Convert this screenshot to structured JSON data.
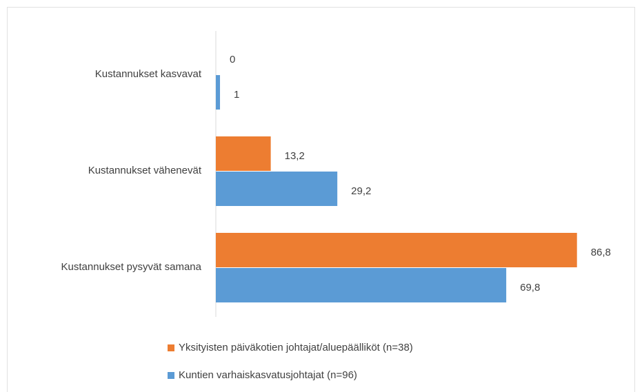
{
  "chart_data": {
    "type": "bar",
    "orientation": "horizontal",
    "categories": [
      "Kustannukset kasvavat",
      "Kustannukset vähenevät",
      "Kustannukset pysyvät samana"
    ],
    "series": [
      {
        "name": "Yksityisten päiväkotien johtajat/aluepäälliköt (n=38)",
        "color": "#ed7d31",
        "values": [
          0,
          13.2,
          86.8
        ],
        "value_labels": [
          "0",
          "13,2",
          "86,8"
        ]
      },
      {
        "name": "Kuntien varhaiskasvatusjohtajat (n=96)",
        "color": "#5b9bd5",
        "values": [
          1,
          29.2,
          69.8
        ],
        "value_labels": [
          "1",
          "29,2",
          "69,8"
        ]
      }
    ],
    "xlim": [
      0,
      90
    ],
    "legend": "bottom"
  }
}
